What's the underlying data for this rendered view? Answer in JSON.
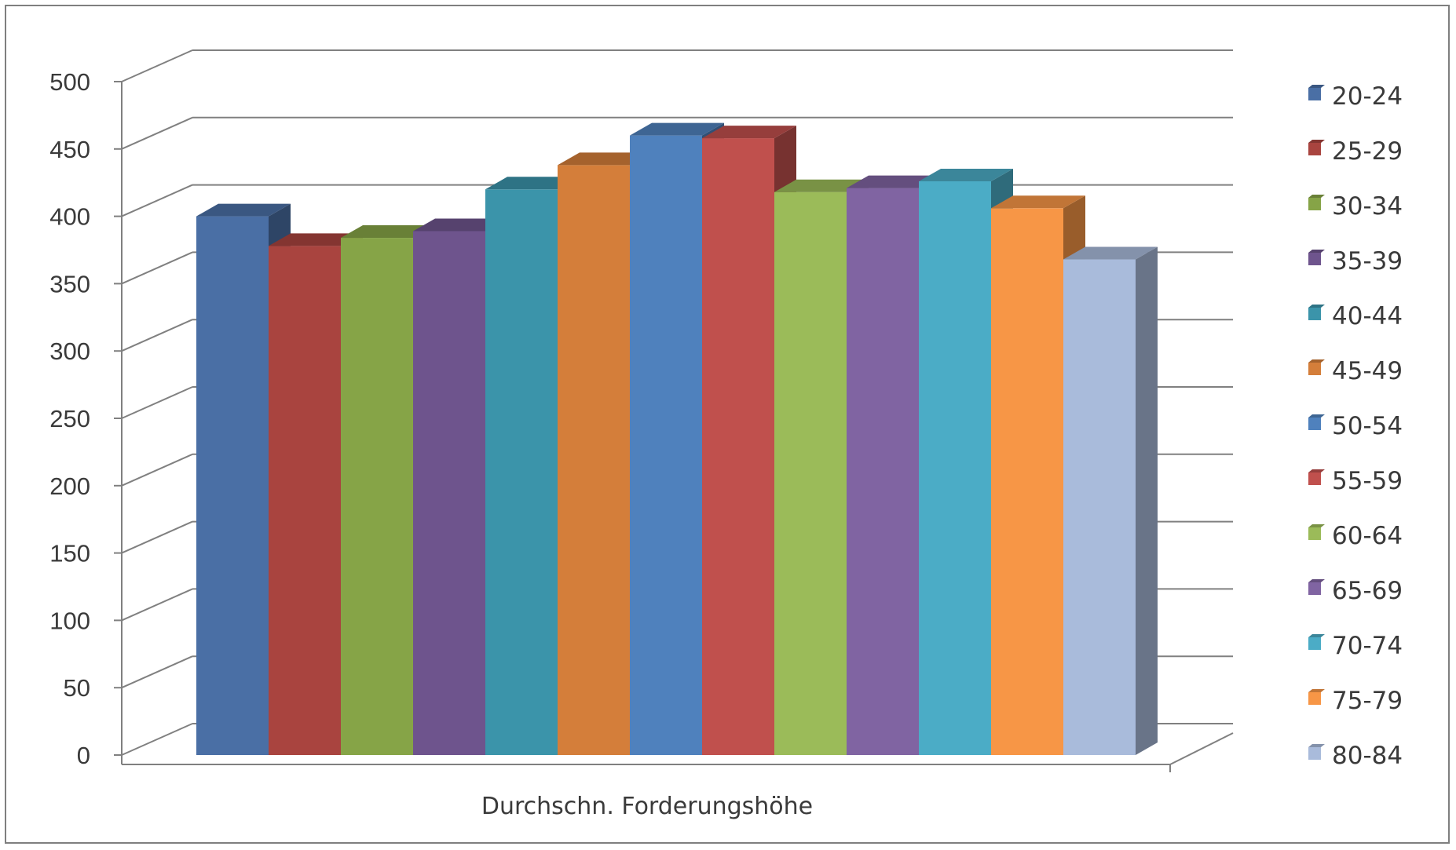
{
  "chart_data": {
    "type": "bar",
    "style": "3d-clustered-column",
    "title": "",
    "xlabel": "Durchschn. Forderungshöhe",
    "ylabel": "",
    "categories": [
      "Durchschn. Forderungshöhe"
    ],
    "ylim": [
      0,
      500
    ],
    "yticks": [
      0,
      50,
      100,
      150,
      200,
      250,
      300,
      350,
      400,
      450,
      500
    ],
    "grid": true,
    "legend_position": "right",
    "series": [
      {
        "name": "20-24",
        "values": [
          400
        ],
        "color": "#4A6FA5"
      },
      {
        "name": "25-29",
        "values": [
          378
        ],
        "color": "#A9443F"
      },
      {
        "name": "30-34",
        "values": [
          384
        ],
        "color": "#86A447"
      },
      {
        "name": "35-39",
        "values": [
          389
        ],
        "color": "#6E548D"
      },
      {
        "name": "40-44",
        "values": [
          420
        ],
        "color": "#3B94AA"
      },
      {
        "name": "45-49",
        "values": [
          438
        ],
        "color": "#D47E3A"
      },
      {
        "name": "50-54",
        "values": [
          460
        ],
        "color": "#4F81BD"
      },
      {
        "name": "55-59",
        "values": [
          458
        ],
        "color": "#C0504D"
      },
      {
        "name": "60-64",
        "values": [
          418
        ],
        "color": "#9BBB59"
      },
      {
        "name": "65-69",
        "values": [
          421
        ],
        "color": "#8064A2"
      },
      {
        "name": "70-74",
        "values": [
          426
        ],
        "color": "#4BACC6"
      },
      {
        "name": "75-79",
        "values": [
          406
        ],
        "color": "#F79646"
      },
      {
        "name": "80-84",
        "values": [
          368
        ],
        "color": "#A9BBDB"
      }
    ]
  }
}
